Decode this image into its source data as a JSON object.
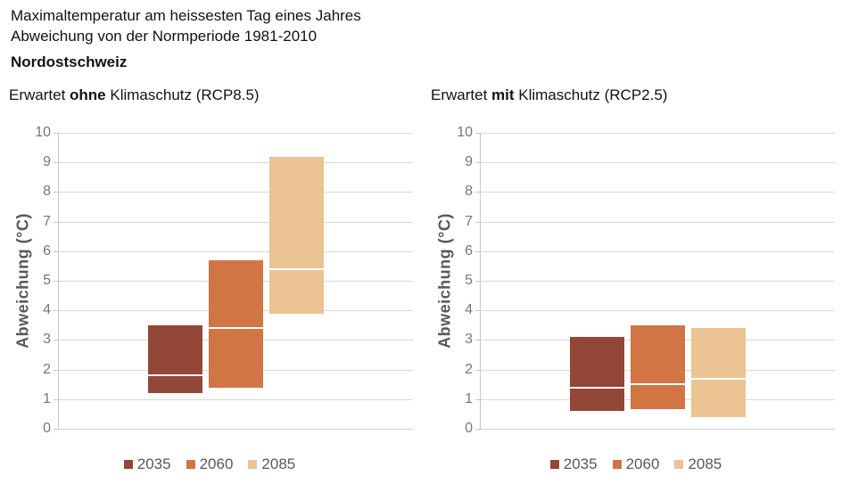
{
  "header": {
    "title_line1": "Maximaltemperatur am heissesten Tag eines Jahres",
    "title_line2": "Abweichung von der Normperiode 1981-2010",
    "region": "Nordostschweiz"
  },
  "colors": {
    "bar_2035": "#934738",
    "bar_2060": "#D17545",
    "bar_2085": "#ECC393",
    "median_line": "#FFFFFF",
    "gridline": "#D9D9D9",
    "axis": "#C6C6C6",
    "tick_label": "#767676",
    "axis_label": "#595959",
    "legend_text": "#595959"
  },
  "chart_data": [
    {
      "type": "bar",
      "title_parts": [
        "Erwartet ",
        "ohne",
        " Klimaschutz (RCP8.5)"
      ],
      "ylabel": "Abweichung (°C)",
      "ylim": [
        0,
        10
      ],
      "yticks": [
        "0",
        "1",
        "2",
        "3",
        "4",
        "5",
        "6",
        "7",
        "8",
        "9",
        "10"
      ],
      "grid": true,
      "legend_position": "bottom",
      "series": [
        {
          "name": "2035",
          "color": "#934738",
          "min": 1.2,
          "median": 1.8,
          "max": 3.5
        },
        {
          "name": "2060",
          "color": "#D17545",
          "min": 1.4,
          "median": 3.4,
          "max": 5.7
        },
        {
          "name": "2085",
          "color": "#ECC393",
          "min": 3.9,
          "median": 5.4,
          "max": 9.2
        }
      ]
    },
    {
      "type": "bar",
      "title_parts": [
        "Erwartet ",
        "mit",
        " Klimaschutz (RCP2.5)"
      ],
      "ylabel": "Abweichung (°C)",
      "ylim": [
        0,
        10
      ],
      "yticks": [
        "0",
        "1",
        "2",
        "3",
        "4",
        "5",
        "6",
        "7",
        "8",
        "9",
        "10"
      ],
      "grid": true,
      "legend_position": "bottom",
      "series": [
        {
          "name": "2035",
          "color": "#934738",
          "min": 0.6,
          "median": 1.4,
          "max": 3.1
        },
        {
          "name": "2060",
          "color": "#D17545",
          "min": 0.65,
          "median": 1.5,
          "max": 3.5
        },
        {
          "name": "2085",
          "color": "#ECC393",
          "min": 0.4,
          "median": 1.7,
          "max": 3.4
        }
      ]
    }
  ]
}
